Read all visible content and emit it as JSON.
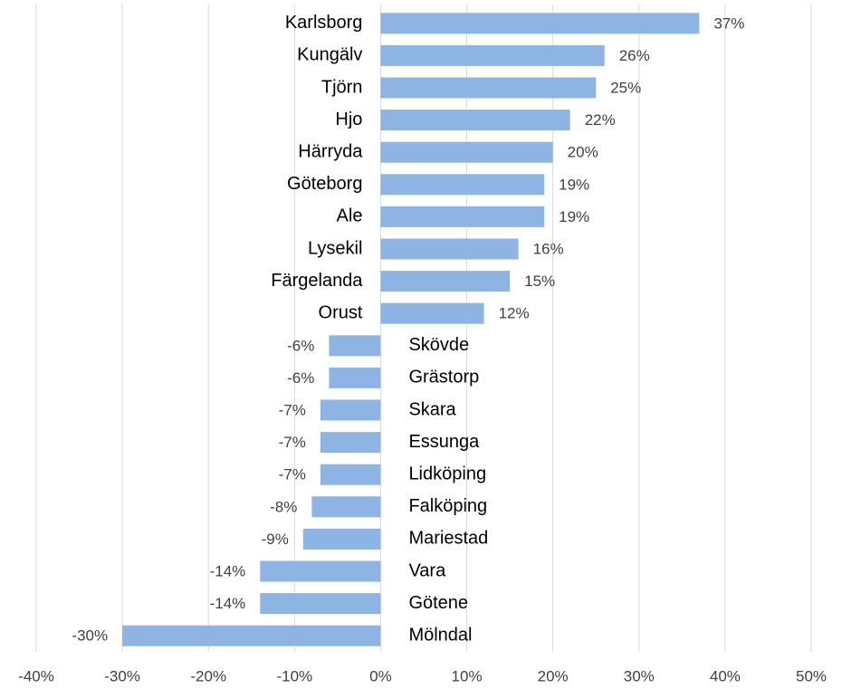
{
  "chart_data": {
    "type": "bar",
    "orientation": "horizontal",
    "color": "#8eb4e3",
    "grid": true,
    "categories": [
      "Karlsborg",
      "Kungälv",
      "Tjörn",
      "Hjo",
      "Härryda",
      "Göteborg",
      "Ale",
      "Lysekil",
      "Färgelanda",
      "Orust",
      "Skövde",
      "Grästorp",
      "Skara",
      "Essunga",
      "Lidköping",
      "Falköping",
      "Mariestad",
      "Vara",
      "Götene",
      "Mölndal"
    ],
    "values": [
      37,
      26,
      25,
      22,
      20,
      19,
      19,
      16,
      15,
      12,
      -6,
      -6,
      -7,
      -7,
      -7,
      -8,
      -9,
      -14,
      -14,
      -30
    ],
    "value_labels": [
      "37%",
      "26%",
      "25%",
      "22%",
      "20%",
      "19%",
      "19%",
      "16%",
      "15%",
      "12%",
      "-6%",
      "-6%",
      "-7%",
      "-7%",
      "-7%",
      "-8%",
      "-9%",
      "-14%",
      "-14%",
      "-30%"
    ],
    "xlim": [
      -40,
      50
    ],
    "xticks": [
      {
        "value": -40,
        "label": "-40%"
      },
      {
        "value": -30,
        "label": "-30%"
      },
      {
        "value": -20,
        "label": "-20%"
      },
      {
        "value": -10,
        "label": "-10%"
      },
      {
        "value": 0,
        "label": "0%"
      },
      {
        "value": 10,
        "label": "10%"
      },
      {
        "value": 20,
        "label": "20%"
      },
      {
        "value": 30,
        "label": "30%"
      },
      {
        "value": 40,
        "label": "40%"
      },
      {
        "value": 50,
        "label": "50%"
      }
    ]
  }
}
